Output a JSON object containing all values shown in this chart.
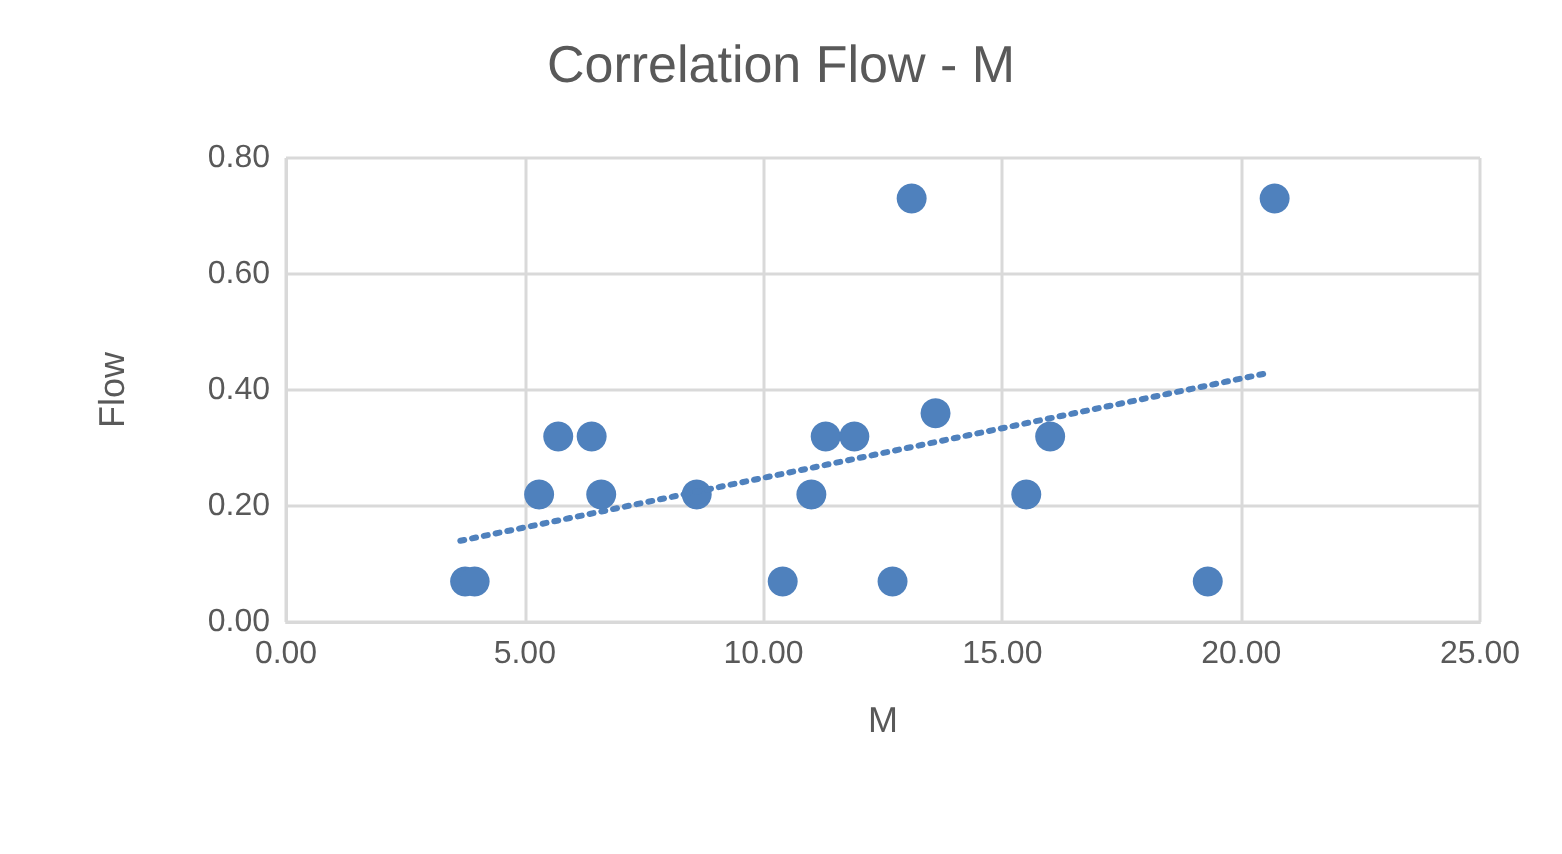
{
  "chart_data": {
    "type": "scatter",
    "title": "Correlation Flow - M",
    "xlabel": "M",
    "ylabel": "Flow",
    "xlim": [
      0,
      25
    ],
    "xticks": [
      {
        "value": 0,
        "label": "0.00"
      },
      {
        "value": 5,
        "label": "5.00"
      },
      {
        "value": 10,
        "label": "10.00"
      },
      {
        "value": 15,
        "label": "15.00"
      },
      {
        "value": 20,
        "label": "20.00"
      },
      {
        "value": 25,
        "label": "25.00"
      }
    ],
    "ylim": [
      0,
      0.8
    ],
    "yticks": [
      {
        "value": 0,
        "label": "0.00"
      },
      {
        "value": 0.2,
        "label": "0.20"
      },
      {
        "value": 0.4,
        "label": "0.40"
      },
      {
        "value": 0.6,
        "label": "0.60"
      },
      {
        "value": 0.8,
        "label": "0.80"
      }
    ],
    "grid": true,
    "marker": "circle",
    "series": [
      {
        "color": "#4f81bd",
        "x": [
          3.75,
          3.95,
          5.3,
          5.7,
          6.4,
          6.6,
          8.6,
          10.4,
          11.0,
          11.3,
          11.9,
          12.7,
          13.1,
          13.6,
          15.5,
          16.0,
          19.3,
          20.7
        ],
        "values": [
          0.07,
          0.07,
          0.22,
          0.32,
          0.32,
          0.22,
          0.22,
          0.07,
          0.22,
          0.32,
          0.32,
          0.07,
          0.73,
          0.36,
          0.22,
          0.32,
          0.07,
          0.73
        ]
      },
      {
        "type": "line",
        "color": "#4f81bd",
        "line_style": "dotted",
        "marker": "none",
        "x": [
          3.65,
          20.6
        ],
        "values": [
          0.14,
          0.43
        ]
      }
    ]
  }
}
